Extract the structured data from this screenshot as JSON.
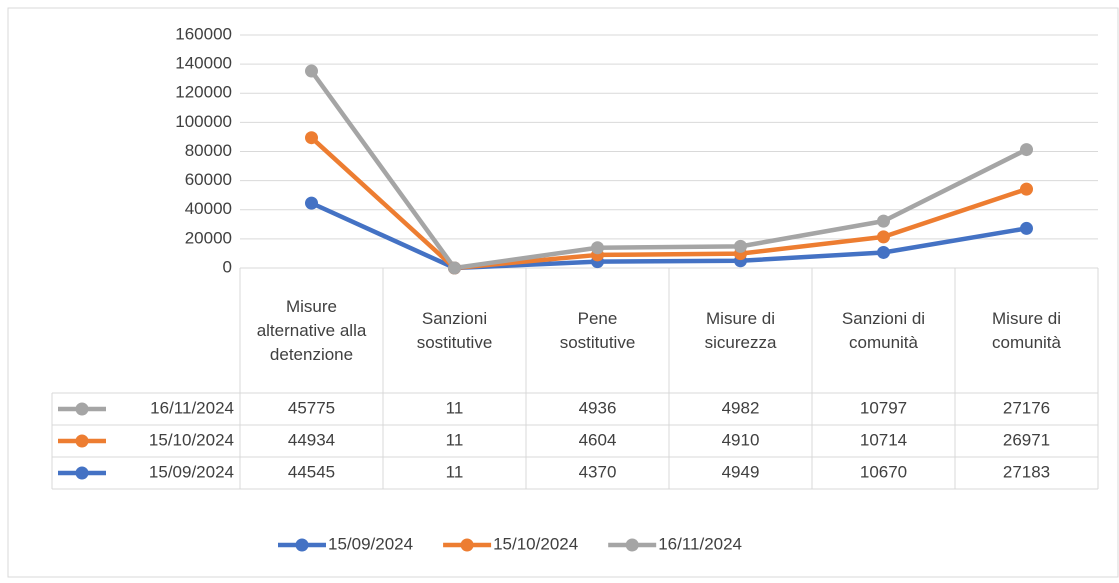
{
  "chart_data": {
    "type": "line",
    "stacked": true,
    "categories": [
      "Misure alternative alla detenzione",
      "Sanzioni sostitutive",
      "Pene sostitutive",
      "Misure di sicurezza",
      "Sanzioni di comunità",
      "Misure di comunità"
    ],
    "series": [
      {
        "name": "15/09/2024",
        "color": "#4472c4",
        "values": [
          44545,
          11,
          4370,
          4949,
          10670,
          27183
        ]
      },
      {
        "name": "15/10/2024",
        "color": "#ed7d31",
        "values": [
          44934,
          11,
          4604,
          4910,
          10714,
          26971
        ]
      },
      {
        "name": "16/11/2024",
        "color": "#a5a5a5",
        "values": [
          45775,
          11,
          4936,
          4982,
          10797,
          27176
        ]
      }
    ],
    "ylim": [
      0,
      160000
    ],
    "yticks": [
      0,
      20000,
      40000,
      60000,
      80000,
      100000,
      120000,
      140000,
      160000
    ],
    "grid": true,
    "legend": "bottom",
    "data_table": true
  }
}
